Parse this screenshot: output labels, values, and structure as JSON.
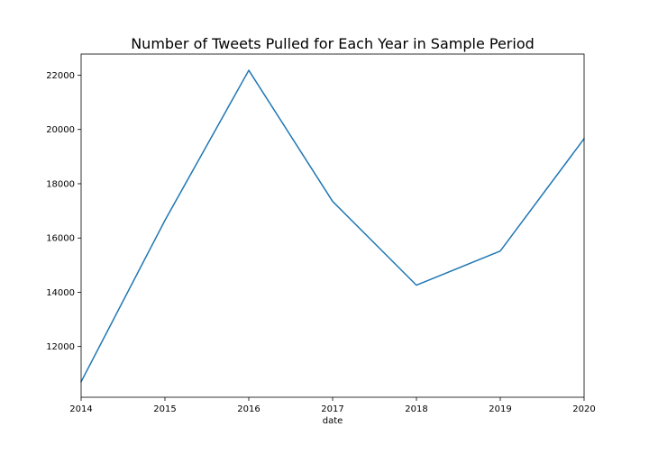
{
  "chart_data": {
    "type": "line",
    "title": "Number of Tweets Pulled for Each Year in Sample Period",
    "xlabel": "date",
    "ylabel": "",
    "x": [
      2014,
      2015,
      2016,
      2017,
      2018,
      2019,
      2020
    ],
    "series": [
      {
        "values": [
          10700,
          16650,
          22180,
          17350,
          14260,
          15520,
          19660
        ]
      }
    ],
    "x_ticks": [
      "2014",
      "2015",
      "2016",
      "2017",
      "2018",
      "2019",
      "2020"
    ],
    "y_ticks": [
      "12000",
      "14000",
      "16000",
      "18000",
      "20000",
      "22000"
    ],
    "xlim": [
      2014,
      2020
    ],
    "ylim": [
      10130,
      22780
    ],
    "grid": false,
    "line_color": "#1f77b4"
  }
}
